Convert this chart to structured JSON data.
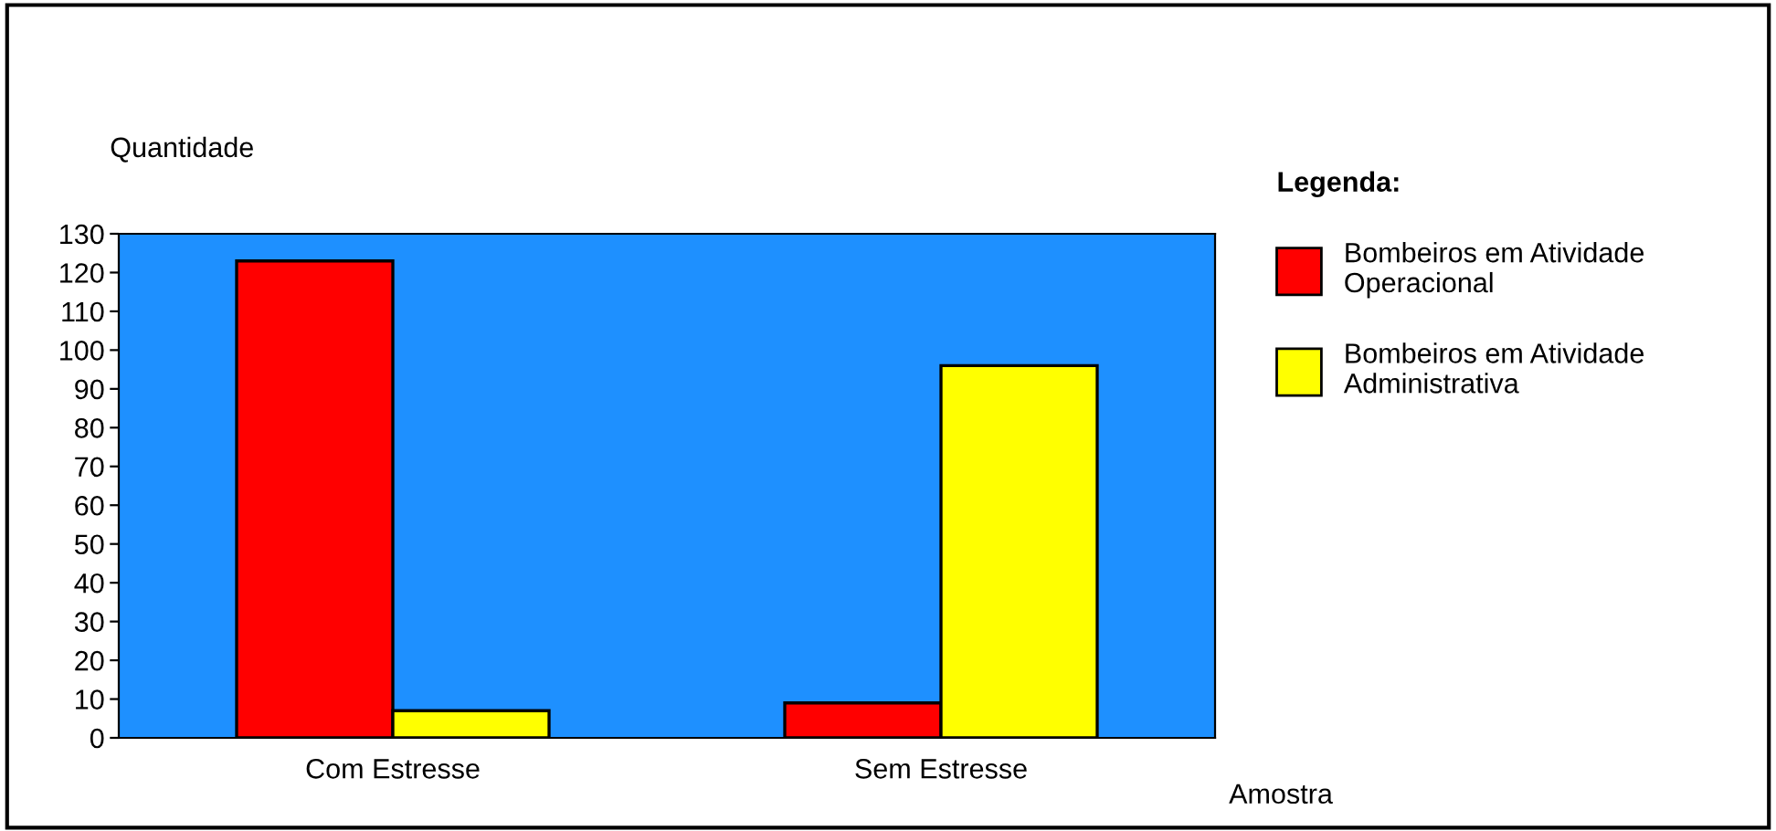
{
  "chart_data": {
    "type": "bar",
    "categories": [
      "Com Estresse",
      "Sem Estresse"
    ],
    "series": [
      {
        "name": "Bombeiros em Atividade Operacional",
        "color": "#ff0000",
        "values": [
          123,
          9
        ]
      },
      {
        "name": "Bombeiros em Atividade Administrativa",
        "color": "#ffff00",
        "values": [
          7,
          96
        ]
      }
    ],
    "ylabel": "Quantidade",
    "xlabel": "Amostra",
    "legend_title": "Legenda:",
    "ylim": [
      0,
      130
    ],
    "yticks": [
      0,
      10,
      20,
      30,
      40,
      50,
      60,
      70,
      80,
      90,
      100,
      110,
      120,
      130
    ],
    "legend": "right",
    "grid": false
  }
}
